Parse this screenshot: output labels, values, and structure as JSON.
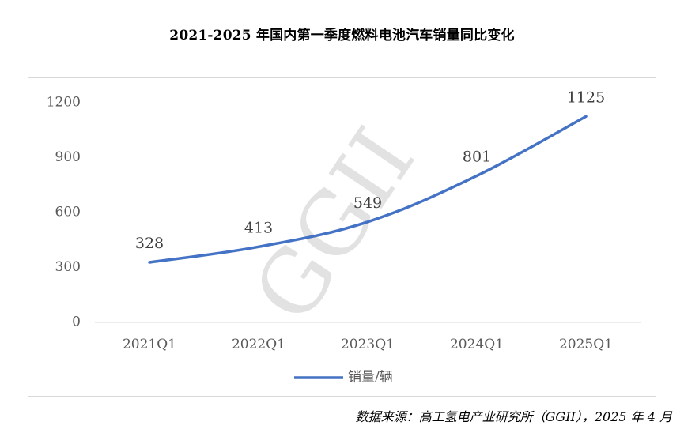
{
  "title": "2021-2025 年国内第一季度燃料电池汽车销量同比变化",
  "source": "数据来源：高工氢电产业研究所（GGII），2025 年 4 月",
  "watermark": "GGII",
  "chart_data": {
    "type": "line",
    "categories": [
      "2021Q1",
      "2022Q1",
      "2023Q1",
      "2024Q1",
      "2025Q1"
    ],
    "series": [
      {
        "name": "销量/辆",
        "values": [
          328,
          413,
          549,
          801,
          1125
        ],
        "color": "#4472C4"
      }
    ],
    "ylim": [
      0,
      1200
    ],
    "yticks": [
      0,
      300,
      600,
      900,
      1200
    ],
    "grid": false,
    "legend": "bottom",
    "smooth": true,
    "data_labels": true
  }
}
